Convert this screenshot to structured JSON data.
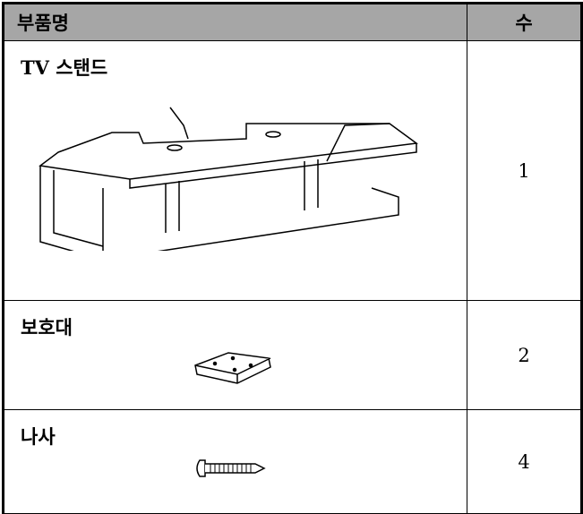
{
  "table": {
    "header": [
      "부품명",
      "수"
    ],
    "rows": [
      [
        "TV 스탠드",
        1
      ],
      [
        "보호대",
        2
      ],
      [
        "나사",
        4
      ]
    ]
  }
}
